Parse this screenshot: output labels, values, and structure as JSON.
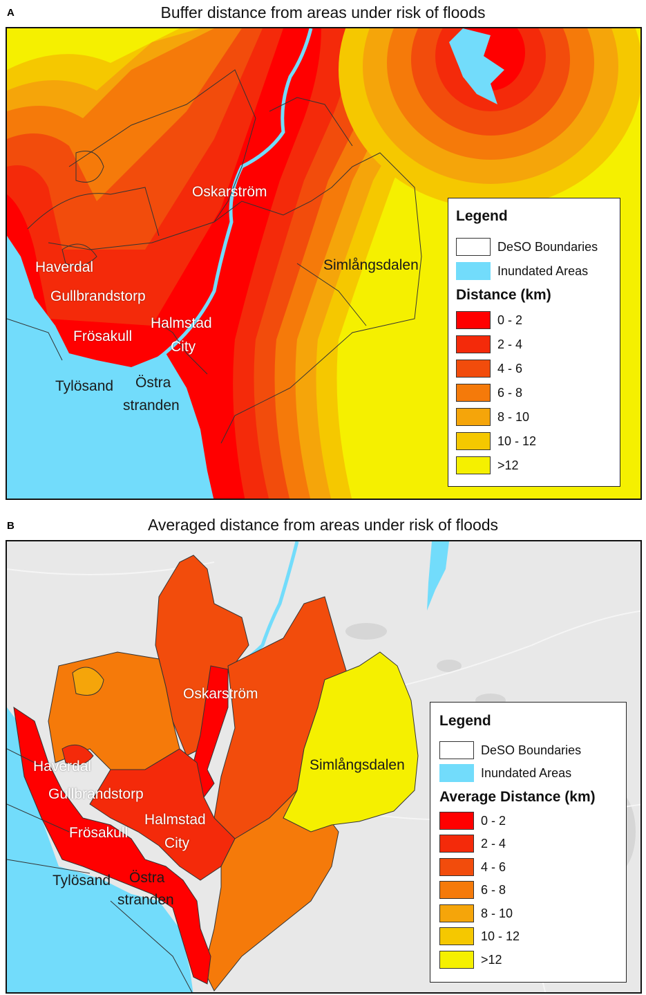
{
  "panels": [
    {
      "letter": "A",
      "title": "Buffer distance from areas under risk of floods",
      "places": [
        "Oskarström",
        "Haverdal",
        "Gullbrandstorp",
        "Halmstad",
        "City",
        "Frösakull",
        "Tylösand",
        "Östra",
        "stranden",
        "Simlångsdalen"
      ],
      "legend": {
        "title": "Legend",
        "items": [
          "DeSO Boundaries",
          "Inundated Areas"
        ],
        "distance_title": "Distance (km)",
        "classes": [
          "0 - 2",
          "2 - 4",
          "4 - 6",
          "6 - 8",
          "8 - 10",
          "10 - 12",
          ">12"
        ]
      }
    },
    {
      "letter": "B",
      "title": "Averaged distance from areas under risk of floods",
      "places": [
        "Oskarström",
        "Haverdal",
        "Gullbrandstorp",
        "Halmstad",
        "City",
        "Frösakull",
        "Tylösand",
        "Östra",
        "stranden",
        "Simlångsdalen"
      ],
      "legend": {
        "title": "Legend",
        "items": [
          "DeSO Boundaries",
          "Inundated Areas"
        ],
        "distance_title": "Average Distance (km)",
        "classes": [
          "0 - 2",
          "2 - 4",
          "4 - 6",
          "6 - 8",
          "8 - 10",
          "10 - 12",
          ">12"
        ]
      }
    }
  ],
  "colors": {
    "classes": [
      "#ff0000",
      "#f42a0a",
      "#f24c0c",
      "#f57a0a",
      "#f5a50a",
      "#f5c800",
      "#f5f000"
    ],
    "water": "#72dcfb",
    "basemap": "#e8e8e8",
    "deso": "#ffffff"
  }
}
